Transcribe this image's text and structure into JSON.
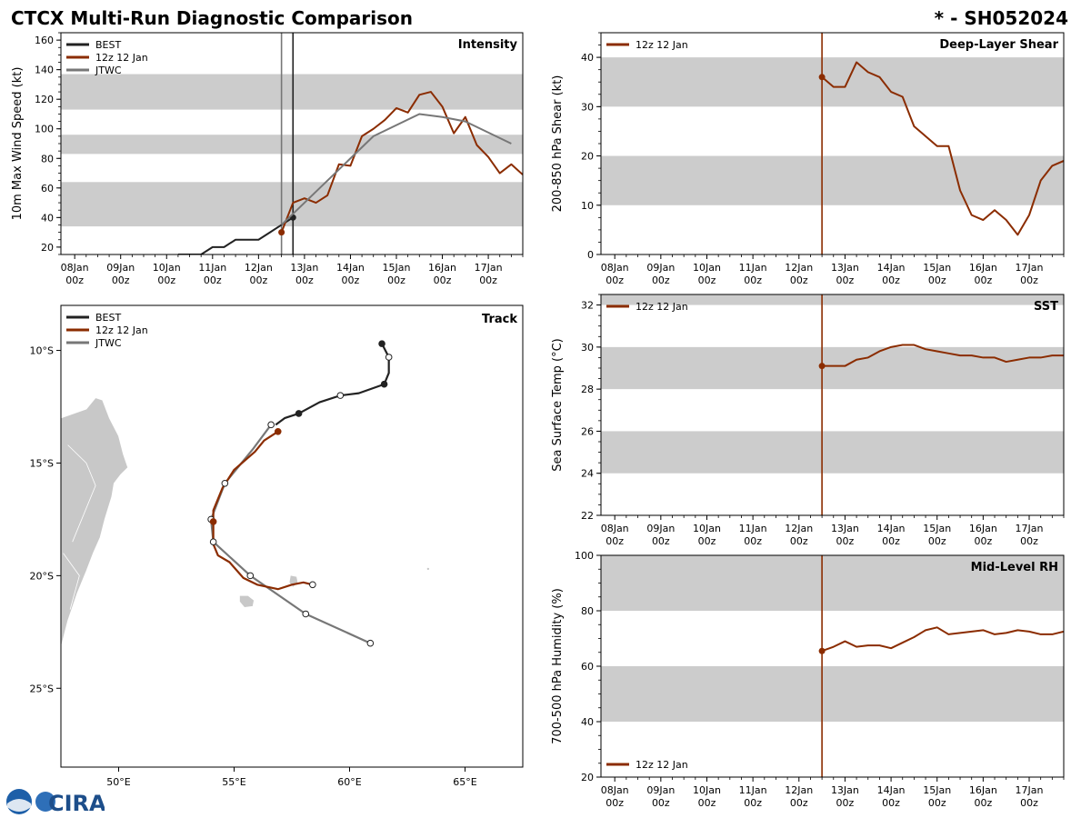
{
  "header": {
    "title": "CTCX Multi-Run Diagnostic Comparison",
    "storm_id": "* - SH052024"
  },
  "colors": {
    "best": "#222222",
    "run": "#8b2c00",
    "jtwc": "#777777",
    "shade": "#cccccc",
    "land": "#c8c8c8"
  },
  "time_axis": {
    "tick_labels_day": [
      "08Jan",
      "09Jan",
      "10Jan",
      "11Jan",
      "12Jan",
      "13Jan",
      "14Jan",
      "15Jan",
      "16Jan",
      "17Jan"
    ],
    "tick_labels_hour": [
      "00z",
      "00z",
      "00z",
      "00z",
      "00z",
      "00z",
      "00z",
      "00z",
      "00z",
      "00z"
    ],
    "xlim_days": [
      -0.3,
      9.75
    ],
    "init_time_days": 4.5
  },
  "logo": {
    "text": "CIRA"
  },
  "chart_data": [
    {
      "id": "intensity",
      "type": "line",
      "title": "Intensity",
      "ylabel": "10m Max Wind Speed (kt)",
      "ylim": [
        15,
        165
      ],
      "yticks": [
        20,
        40,
        60,
        80,
        100,
        120,
        140,
        160
      ],
      "shaded_bands": [
        [
          34,
          64
        ],
        [
          83,
          96
        ],
        [
          113,
          137
        ]
      ],
      "vlines": [
        {
          "x": 4.5,
          "color": "#777777"
        },
        {
          "x": 4.75,
          "color": "#222222"
        }
      ],
      "legend": [
        "BEST",
        "12z 12 Jan",
        "JTWC"
      ],
      "legend_position": "top-left",
      "series": [
        {
          "name": "BEST",
          "color": "#222222",
          "x": [
            2.25,
            2.5,
            2.75,
            3.0,
            3.25,
            3.5,
            3.75,
            4.0,
            4.25,
            4.5,
            4.75
          ],
          "y": [
            15,
            15,
            15,
            20,
            20,
            25,
            25,
            25,
            30,
            35,
            40
          ],
          "markers": [
            4.75
          ]
        },
        {
          "name": "12z 12 Jan",
          "color": "#8b2c00",
          "x": [
            4.5,
            4.75,
            5.0,
            5.25,
            5.5,
            5.75,
            6.0,
            6.25,
            6.5,
            6.75,
            7.0,
            7.25,
            7.5,
            7.75,
            8.0,
            8.25,
            8.5,
            8.75,
            9.0,
            9.25,
            9.5,
            9.75
          ],
          "y": [
            30,
            50,
            53,
            50,
            55,
            76,
            75,
            95,
            100,
            106,
            114,
            111,
            123,
            125,
            115,
            97,
            108,
            89,
            81,
            70,
            76,
            69
          ],
          "markers": [
            4.5
          ]
        },
        {
          "name": "JTWC",
          "color": "#777777",
          "x": [
            4.5,
            5.0,
            5.5,
            6.0,
            6.5,
            7.5,
            8.0,
            8.5,
            9.5
          ],
          "y": [
            35,
            50,
            65,
            80,
            95,
            110,
            108,
            105,
            90
          ]
        }
      ]
    },
    {
      "id": "shear",
      "type": "line",
      "title": "Deep-Layer Shear",
      "ylabel": "200-850 hPa Shear (kt)",
      "ylim": [
        0,
        45
      ],
      "yticks": [
        0,
        10,
        20,
        30,
        40
      ],
      "shaded_bands": [
        [
          10,
          20
        ],
        [
          30,
          40
        ]
      ],
      "vlines": [
        {
          "x": 4.5,
          "color": "#8b2c00"
        }
      ],
      "legend": [
        "12z 12 Jan"
      ],
      "legend_position": "top-left",
      "series": [
        {
          "name": "12z 12 Jan",
          "color": "#8b2c00",
          "x": [
            4.5,
            4.75,
            5.0,
            5.25,
            5.5,
            5.75,
            6.0,
            6.25,
            6.5,
            6.75,
            7.0,
            7.25,
            7.5,
            7.75,
            8.0,
            8.25,
            8.5,
            8.75,
            9.0,
            9.25,
            9.5,
            9.75
          ],
          "y": [
            36,
            34,
            34,
            39,
            37,
            36,
            33,
            32,
            26,
            24,
            22,
            22,
            13,
            8,
            7,
            9,
            7,
            4,
            8,
            15,
            18,
            19
          ],
          "markers": [
            4.5
          ]
        }
      ]
    },
    {
      "id": "sst",
      "type": "line",
      "title": "SST",
      "ylabel": "Sea Surface Temp (°C)",
      "ylim": [
        22,
        32.5
      ],
      "yticks": [
        22,
        24,
        26,
        28,
        30,
        32
      ],
      "shaded_bands": [
        [
          24,
          26
        ],
        [
          28,
          30
        ],
        [
          32,
          32.5
        ]
      ],
      "vlines": [
        {
          "x": 4.5,
          "color": "#8b2c00"
        }
      ],
      "legend": [
        "12z 12 Jan"
      ],
      "legend_position": "top-left",
      "series": [
        {
          "name": "12z 12 Jan",
          "color": "#8b2c00",
          "x": [
            4.5,
            4.75,
            5.0,
            5.25,
            5.5,
            5.75,
            6.0,
            6.25,
            6.5,
            6.75,
            7.0,
            7.25,
            7.5,
            7.75,
            8.0,
            8.25,
            8.5,
            8.75,
            9.0,
            9.25,
            9.5,
            9.75
          ],
          "y": [
            29.1,
            29.1,
            29.1,
            29.4,
            29.5,
            29.8,
            30.0,
            30.1,
            30.1,
            29.9,
            29.8,
            29.7,
            29.6,
            29.6,
            29.5,
            29.5,
            29.3,
            29.4,
            29.5,
            29.5,
            29.6,
            29.6
          ],
          "markers": [
            4.5
          ]
        }
      ]
    },
    {
      "id": "rh",
      "type": "line",
      "title": "Mid-Level RH",
      "ylabel": "700-500 hPa Humidity (%)",
      "ylim": [
        20,
        100
      ],
      "yticks": [
        20,
        40,
        60,
        80,
        100
      ],
      "shaded_bands": [
        [
          40,
          60
        ],
        [
          80,
          100
        ]
      ],
      "vlines": [
        {
          "x": 4.5,
          "color": "#8b2c00"
        }
      ],
      "legend": [
        "12z 12 Jan"
      ],
      "legend_position": "bottom-left",
      "series": [
        {
          "name": "12z 12 Jan",
          "color": "#8b2c00",
          "x": [
            4.5,
            4.75,
            5.0,
            5.25,
            5.5,
            5.75,
            6.0,
            6.25,
            6.5,
            6.75,
            7.0,
            7.25,
            7.5,
            7.75,
            8.0,
            8.25,
            8.5,
            8.75,
            9.0,
            9.25,
            9.5,
            9.75
          ],
          "y": [
            65.5,
            67,
            69,
            67,
            67.5,
            67.5,
            66.5,
            68.5,
            70.5,
            73,
            74,
            71.5,
            72,
            72.5,
            73,
            71.5,
            72,
            73,
            72.5,
            71.5,
            71.5,
            72.5
          ],
          "markers": [
            4.5
          ]
        }
      ]
    },
    {
      "id": "track",
      "type": "scatter",
      "title": "Track",
      "xlim": [
        47.5,
        67.5
      ],
      "ylim": [
        -28.5,
        -8.0
      ],
      "xticks": [
        50,
        55,
        60,
        65
      ],
      "xtick_labels": [
        "50°E",
        "55°E",
        "60°E",
        "65°E"
      ],
      "yticks": [
        -10,
        -15,
        -20,
        -25
      ],
      "ytick_labels": [
        "10°S",
        "15°S",
        "20°S",
        "25°S"
      ],
      "legend": [
        "BEST",
        "12z 12 Jan",
        "JTWC"
      ],
      "legend_position": "top-left",
      "series": [
        {
          "name": "BEST",
          "color": "#222222",
          "lon": [
            61.4,
            61.7,
            61.7,
            61.5,
            60.4,
            59.6,
            58.7,
            57.8,
            57.2,
            56.8
          ],
          "lat": [
            -9.7,
            -10.3,
            -11.0,
            -11.5,
            -11.9,
            -12.0,
            -12.3,
            -12.8,
            -13.0,
            -13.3
          ],
          "marker_lon": [
            61.4,
            61.7,
            61.5,
            59.6,
            57.8
          ],
          "marker_lat": [
            -9.7,
            -10.3,
            -11.5,
            -12.0,
            -12.8
          ],
          "marker_open": [
            false,
            true,
            false,
            true,
            false
          ]
        },
        {
          "name": "12z 12 Jan",
          "color": "#8b2c00",
          "lon": [
            56.9,
            56.3,
            55.9,
            55.0,
            54.5,
            54.1,
            54.1,
            54.1,
            54.3,
            54.8,
            55.4,
            56.0,
            56.9,
            57.5,
            58.0,
            58.4
          ],
          "lat": [
            -13.6,
            -14.0,
            -14.5,
            -15.3,
            -16.1,
            -17.1,
            -17.6,
            -18.6,
            -19.1,
            -19.4,
            -20.1,
            -20.4,
            -20.6,
            -20.4,
            -20.3,
            -20.4
          ],
          "marker_lon": [
            56.9,
            54.1,
            58.4
          ],
          "marker_lat": [
            -13.6,
            -17.6,
            -20.4
          ],
          "marker_open": [
            false,
            false,
            true
          ]
        },
        {
          "name": "JTWC",
          "color": "#777777",
          "lon": [
            56.6,
            55.8,
            54.6,
            54.0,
            54.1,
            55.7,
            58.1,
            60.9
          ],
          "lat": [
            -13.3,
            -14.4,
            -15.9,
            -17.5,
            -18.5,
            -20.0,
            -21.7,
            -23.0
          ],
          "marker_lon": [
            56.6,
            54.6,
            54.0,
            54.1,
            55.7,
            58.1,
            60.9
          ],
          "marker_lat": [
            -13.3,
            -15.9,
            -17.5,
            -18.5,
            -20.0,
            -21.7,
            -23.0
          ],
          "marker_open": [
            true,
            true,
            true,
            true,
            true,
            true,
            true
          ]
        }
      ]
    }
  ]
}
